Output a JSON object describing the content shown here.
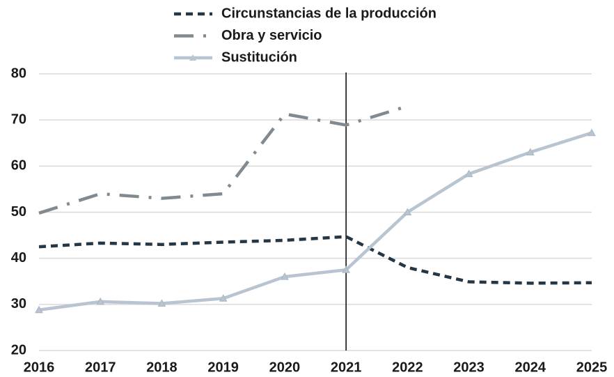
{
  "chart_data": {
    "type": "line",
    "categories": [
      "2016",
      "2017",
      "2018",
      "2019",
      "2020",
      "2021",
      "2022",
      "2023",
      "2024",
      "2025"
    ],
    "series": [
      {
        "name": "Circunstancias de la producción",
        "color": "#243746",
        "dash": "10,7",
        "values": [
          42.5,
          43.3,
          43.0,
          43.5,
          43.9,
          44.7,
          38.0,
          34.9,
          34.6,
          34.7
        ]
      },
      {
        "name": "Obra y servicio",
        "color": "#7f8a91",
        "dash": "28,14,4,14",
        "values": [
          49.8,
          54.0,
          53.0,
          54.0,
          71.3,
          68.9,
          73.0,
          null,
          null,
          null
        ]
      },
      {
        "name": "Sustitución",
        "color": "#b8c4d0",
        "marker": "triangle",
        "values": [
          28.8,
          30.6,
          30.2,
          31.3,
          36.0,
          37.5,
          50.0,
          58.3,
          63.0,
          67.2
        ]
      }
    ],
    "ylim": [
      20,
      80
    ],
    "yticks": [
      20,
      30,
      40,
      50,
      60,
      70,
      80
    ],
    "grid": true,
    "vline": "2021",
    "legend": "top"
  }
}
